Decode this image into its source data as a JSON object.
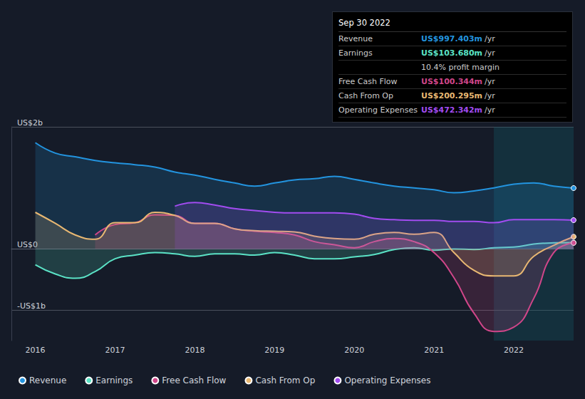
{
  "chart_data": {
    "type": "line",
    "x": [
      2016,
      2016.25,
      2016.5,
      2016.75,
      2017,
      2017.25,
      2017.5,
      2017.75,
      2018,
      2018.25,
      2018.5,
      2018.75,
      2019,
      2019.25,
      2019.5,
      2019.75,
      2020,
      2020.25,
      2020.5,
      2020.75,
      2021,
      2021.25,
      2021.5,
      2021.75,
      2022,
      2022.25,
      2022.5,
      2022.75
    ],
    "xlim": [
      2015.7,
      2022.75
    ],
    "xticks": [
      2016,
      2017,
      2018,
      2019,
      2020,
      2021,
      2022
    ],
    "ylim": [
      -1.5,
      2
    ],
    "yticks": [
      {
        "value": -1,
        "label": "-US$1b"
      },
      {
        "value": 0,
        "label": "US$0"
      },
      {
        "value": 2,
        "label": "US$2b"
      }
    ],
    "grid": true,
    "legend": "bottom-left",
    "series": [
      {
        "name": "Revenue",
        "color": "#2394df",
        "values": [
          1.74,
          1.57,
          1.51,
          1.45,
          1.41,
          1.38,
          1.34,
          1.26,
          1.21,
          1.14,
          1.08,
          1.03,
          1.08,
          1.13,
          1.15,
          1.19,
          1.14,
          1.08,
          1.03,
          1.0,
          0.97,
          0.92,
          0.95,
          1.0,
          1.06,
          1.08,
          1.03,
          0.997
        ]
      },
      {
        "name": "Earnings",
        "color": "#5be3c6",
        "values": [
          -0.26,
          -0.41,
          -0.48,
          -0.37,
          -0.16,
          -0.1,
          -0.06,
          -0.08,
          -0.12,
          -0.08,
          -0.08,
          -0.1,
          -0.06,
          -0.1,
          -0.16,
          -0.16,
          -0.13,
          -0.09,
          -0.01,
          0.02,
          -0.02,
          0.0,
          -0.01,
          0.02,
          0.03,
          0.08,
          0.1,
          0.104
        ]
      },
      {
        "name": "Free Cash Flow",
        "color": "#d1468a",
        "values": [
          null,
          null,
          null,
          0.23,
          0.4,
          0.43,
          0.56,
          0.55,
          0.42,
          0.42,
          0.33,
          0.29,
          0.27,
          0.23,
          0.12,
          0.07,
          0.02,
          0.12,
          0.17,
          0.12,
          -0.06,
          -0.47,
          -1.05,
          -1.35,
          -1.28,
          -0.81,
          -0.06,
          0.1
        ]
      },
      {
        "name": "Cash From Op",
        "color": "#e9b872",
        "values": [
          0.6,
          0.42,
          0.23,
          0.16,
          0.43,
          0.43,
          0.6,
          0.55,
          0.42,
          0.42,
          0.33,
          0.3,
          0.29,
          0.28,
          0.21,
          0.17,
          0.16,
          0.24,
          0.27,
          0.24,
          0.27,
          -0.06,
          -0.35,
          -0.44,
          -0.44,
          -0.12,
          0.06,
          0.2
        ]
      },
      {
        "name": "Operating Expenses",
        "color": "#a24cf0",
        "values": [
          null,
          null,
          null,
          null,
          null,
          null,
          null,
          0.7,
          0.76,
          0.72,
          0.66,
          0.63,
          0.6,
          0.59,
          0.59,
          0.59,
          0.57,
          0.5,
          0.48,
          0.47,
          0.47,
          0.45,
          0.45,
          0.43,
          0.48,
          0.48,
          0.48,
          0.472
        ]
      }
    ],
    "annotations": {
      "date": "Sep 30 2022",
      "rows": [
        {
          "label": "Revenue",
          "value": "US$997.403m",
          "unit": "/yr",
          "color": "#2394df"
        },
        {
          "label": "Earnings",
          "value": "US$103.680m",
          "unit": "/yr",
          "color": "#5be3c6"
        },
        {
          "note": "10.4% profit margin"
        },
        {
          "label": "Free Cash Flow",
          "value": "US$100.344m",
          "unit": "/yr",
          "color": "#d1468a"
        },
        {
          "label": "Cash From Op",
          "value": "US$200.295m",
          "unit": "/yr",
          "color": "#e9b872"
        },
        {
          "label": "Operating Expenses",
          "value": "US$472.342m",
          "unit": "/yr",
          "color": "#a24cf0"
        }
      ]
    }
  }
}
